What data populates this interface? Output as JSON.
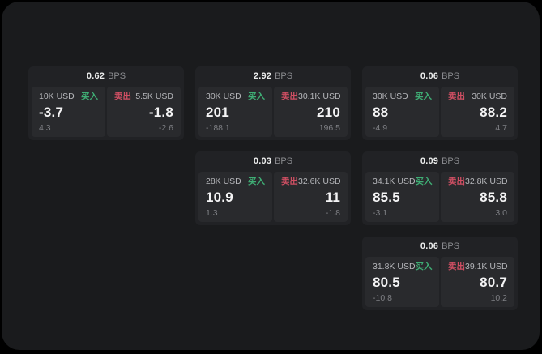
{
  "labels": {
    "buy": "买入",
    "sell": "卖出",
    "bps_unit": "BPS"
  },
  "colors": {
    "buy_green": "#3fae75",
    "sell_red": "#cf4f63",
    "panel_bg": "#1a1b1d",
    "card_bg": "#212225",
    "tile_bg": "#292a2d"
  },
  "cards": [
    {
      "bps": "0.62",
      "buy": {
        "amount": "10K USD",
        "price": "-3.7",
        "delta": "4.3"
      },
      "sell": {
        "amount": "5.5K USD",
        "price": "-1.8",
        "delta": "-2.6"
      }
    },
    {
      "bps": "2.92",
      "buy": {
        "amount": "30K USD",
        "price": "201",
        "delta": "-188.1"
      },
      "sell": {
        "amount": "30.1K USD",
        "price": "210",
        "delta": "196.5"
      }
    },
    {
      "bps": "0.06",
      "buy": {
        "amount": "30K USD",
        "price": "88",
        "delta": "-4.9"
      },
      "sell": {
        "amount": "30K USD",
        "price": "88.2",
        "delta": "4.7"
      }
    },
    {
      "bps": "0.03",
      "buy": {
        "amount": "28K USD",
        "price": "10.9",
        "delta": "1.3"
      },
      "sell": {
        "amount": "32.6K USD",
        "price": "11",
        "delta": "-1.8"
      }
    },
    {
      "bps": "0.09",
      "buy": {
        "amount": "34.1K USD",
        "price": "85.5",
        "delta": "-3.1"
      },
      "sell": {
        "amount": "32.8K USD",
        "price": "85.8",
        "delta": "3.0"
      }
    },
    {
      "bps": "0.06",
      "buy": {
        "amount": "31.8K USD",
        "price": "80.5",
        "delta": "-10.8"
      },
      "sell": {
        "amount": "39.1K USD",
        "price": "80.7",
        "delta": "10.2"
      }
    }
  ]
}
